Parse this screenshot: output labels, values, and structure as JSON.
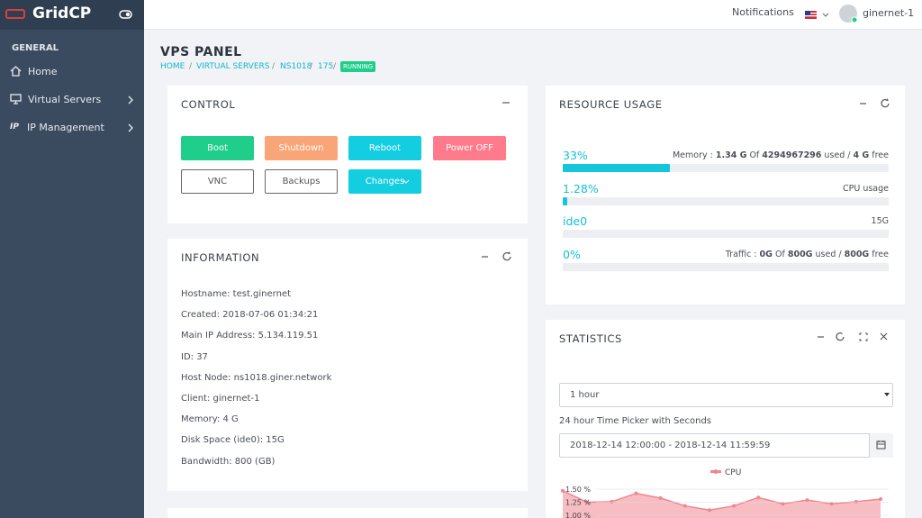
{
  "sidebar": {
    "brand": "GridCP",
    "section": "GENERAL",
    "ip_icon": "IP",
    "items": [
      "Home",
      "Virtual Servers",
      "IP Management"
    ]
  },
  "topbar": {
    "notifications": "Notifications",
    "user": "ginernet-1"
  },
  "page": {
    "title": "VPS PANEL",
    "breadcrumb": [
      "HOME",
      "VIRTUAL SERVERS",
      "NS1018",
      "175"
    ],
    "status": "RUNNING"
  },
  "control": {
    "title": "CONTROL",
    "buttons": [
      "Boot",
      "Shutdown",
      "Reboot",
      "Power OFF",
      "VNC",
      "Backups",
      "Changes"
    ]
  },
  "information": {
    "title": "INFORMATION",
    "lines": [
      "Hostname: test.ginernet",
      "Created: 2018-07-06 01:34:21",
      "Main IP Address: 5.134.119.51",
      "ID: 37",
      "Host Node: ns1018.giner.network",
      "Client: ginernet-1",
      "Memory: 4 G",
      "Disk Space (ide0): 15G",
      "Bandwidth: 800 (GB)"
    ]
  },
  "resource": {
    "title": "RESOURCE USAGE",
    "items": [
      {
        "label": "33%",
        "value": 33,
        "detail": [
          {
            "text": "Memory : ",
            "bold": false
          },
          {
            "text": "1.34 G",
            "bold": true
          },
          {
            "text": " Of ",
            "bold": false
          },
          {
            "text": "4294967296",
            "bold": true
          },
          {
            "text": " used / ",
            "bold": false
          },
          {
            "text": "4 G",
            "bold": true
          },
          {
            "text": " free",
            "bold": false
          }
        ]
      },
      {
        "label": "1.28%",
        "value": 1.28,
        "detail": [
          {
            "text": "CPU usage",
            "bold": false
          }
        ]
      },
      {
        "label": "ide0",
        "detail": [
          {
            "text": "15G",
            "bold": false
          }
        ]
      },
      {
        "label": "0%",
        "value": 0,
        "detail": [
          {
            "text": "Traffic : ",
            "bold": false
          },
          {
            "text": "0G",
            "bold": true
          },
          {
            "text": " Of ",
            "bold": false
          },
          {
            "text": "800G",
            "bold": true
          },
          {
            "text": " used / ",
            "bold": false
          },
          {
            "text": "800G",
            "bold": true
          },
          {
            "text": " free",
            "bold": false
          }
        ]
      }
    ]
  },
  "statistics": {
    "title": "STATISTICS",
    "range": "1 hour",
    "picker_label": "24 hour Time Picker with Seconds",
    "picker_value": "2018-12-14 12:00:00 - 2018-12-14 11:59:59"
  },
  "chart_data": {
    "type": "area",
    "categories": [
      null,
      null,
      null,
      null,
      null,
      null,
      null,
      null,
      null,
      null,
      null,
      null,
      null,
      null
    ],
    "series": [
      {
        "name": "CPU",
        "color": "#f0868f",
        "values": [
          1.47,
          1.25,
          1.26,
          1.42,
          1.33,
          1.18,
          1.1,
          1.18,
          1.34,
          1.22,
          1.29,
          1.22,
          1.26,
          1.31
        ]
      }
    ],
    "ylim": [
      1.0,
      1.5
    ],
    "yticks": [
      {
        "value": 1.5,
        "label": "1.50 %"
      },
      {
        "value": 1.25,
        "label": "1.25 %"
      },
      {
        "value": 1.0,
        "label": "1.00 %"
      }
    ],
    "grid": true
  }
}
